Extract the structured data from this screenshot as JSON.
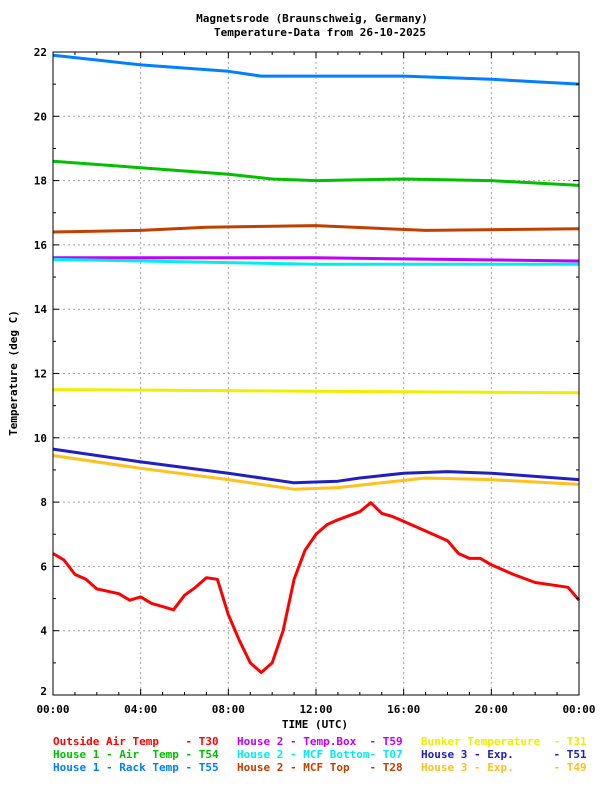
{
  "chart_data": {
    "type": "line",
    "title": [
      "Magnetsrode (Braunschweig, Germany)",
      "Temperature-Data from 26-10-2025"
    ],
    "xlabel": "TIME (UTC)",
    "ylabel": "Temperature (deg C)",
    "xlim_hours": [
      0,
      24
    ],
    "ylim": [
      2,
      22
    ],
    "xticks": [
      "00:00",
      "04:00",
      "08:00",
      "12:00",
      "16:00",
      "20:00",
      "00:00"
    ],
    "yticks": [
      2,
      4,
      6,
      8,
      10,
      12,
      14,
      16,
      18,
      20,
      22
    ],
    "grid": true,
    "legend_placement": "bottom",
    "series": [
      {
        "name": "Outside Air Temp    - T30",
        "color": "#ff0000",
        "x": [
          0,
          0.5,
          1,
          1.5,
          2,
          3,
          3.5,
          4,
          4.5,
          5,
          5.5,
          6,
          6.5,
          7,
          7.5,
          8,
          8.5,
          9,
          9.5,
          10,
          10.5,
          11,
          11.5,
          12,
          12.5,
          13,
          14,
          14.5,
          15,
          15.5,
          16,
          17,
          18,
          18.5,
          19,
          19.5,
          20,
          21,
          22,
          23,
          23.5,
          24
        ],
        "y": [
          6.4,
          6.2,
          5.75,
          5.6,
          5.3,
          5.15,
          4.95,
          5.05,
          4.85,
          4.75,
          4.65,
          5.1,
          5.35,
          5.65,
          5.6,
          4.5,
          3.7,
          3.0,
          2.7,
          3.0,
          4.0,
          5.6,
          6.5,
          7.0,
          7.3,
          7.45,
          7.7,
          7.98,
          7.65,
          7.55,
          7.4,
          7.1,
          6.8,
          6.4,
          6.25,
          6.25,
          6.05,
          5.75,
          5.5,
          5.4,
          5.35,
          4.95
        ]
      },
      {
        "name": "House 1 - Air  Temp - T54",
        "color": "#00c000",
        "x": [
          0,
          4,
          8,
          10,
          12,
          16,
          20,
          24
        ],
        "y": [
          18.6,
          18.4,
          18.2,
          18.05,
          18.0,
          18.05,
          18.0,
          17.85
        ]
      },
      {
        "name": "House 1 - Rack Temp - T55",
        "color": "#0080ff",
        "x": [
          0,
          2,
          4,
          8,
          9.5,
          12,
          16,
          20,
          24
        ],
        "y": [
          21.9,
          21.75,
          21.6,
          21.4,
          21.25,
          21.25,
          21.25,
          21.15,
          21.0
        ]
      },
      {
        "name": "House 2 - Temp.Box  - T59",
        "color": "#c000ff",
        "x": [
          0,
          12,
          24
        ],
        "y": [
          15.6,
          15.6,
          15.5
        ]
      },
      {
        "name": "House 2 - MCF Bottom- T07",
        "color": "#00eeee",
        "x": [
          0,
          8,
          12,
          24
        ],
        "y": [
          15.55,
          15.45,
          15.4,
          15.4
        ]
      },
      {
        "name": "House 2 - MCF Top   - T28",
        "color": "#c04000",
        "x": [
          0,
          4,
          7,
          12,
          17,
          24
        ],
        "y": [
          16.4,
          16.45,
          16.55,
          16.6,
          16.45,
          16.5
        ]
      },
      {
        "name": "Bunker Temperature  - T31",
        "color": "#eeee00",
        "x": [
          0,
          12,
          24
        ],
        "y": [
          11.5,
          11.45,
          11.4
        ]
      },
      {
        "name": "House 3 - Exp.      - T51",
        "color": "#2020c0",
        "x": [
          0,
          4,
          8,
          11,
          13,
          14,
          16,
          18,
          20,
          24
        ],
        "y": [
          9.65,
          9.25,
          8.9,
          8.6,
          8.65,
          8.75,
          8.9,
          8.95,
          8.9,
          8.7
        ]
      },
      {
        "name": "House 3 - Exp.      - T49",
        "color": "#ffc020",
        "x": [
          0,
          4,
          8,
          11,
          13,
          15,
          17,
          20,
          24
        ],
        "y": [
          9.45,
          9.05,
          8.7,
          8.4,
          8.45,
          8.6,
          8.75,
          8.7,
          8.55
        ]
      }
    ]
  }
}
